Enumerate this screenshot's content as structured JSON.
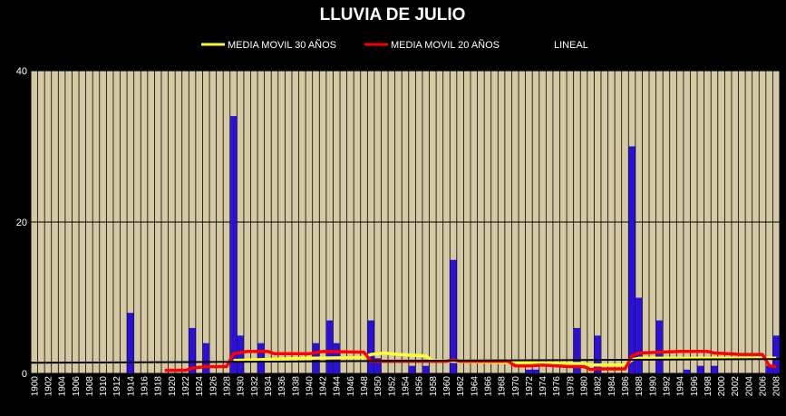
{
  "chart_data": {
    "type": "bar",
    "title": "LLUVIA DE JULIO",
    "xlabel": "",
    "ylabel": "",
    "ylim": [
      0,
      40
    ],
    "y_ticks": [
      "0",
      "20",
      "40"
    ],
    "x_start": 1900,
    "x_end": 2008,
    "x_tick_step": 2,
    "grid": {
      "horizontal": true,
      "vertical": true
    },
    "legend_position": "top",
    "colors": {
      "plot_background": "#d4c9a3",
      "bars": "#2a10d8",
      "ma30": "#ffff33",
      "ma20": "#ff0000",
      "trend": "#000000",
      "grid": "#000000"
    },
    "legend": [
      {
        "key": "ma30",
        "label": "MEDIA MOVIL 30 AÑOS"
      },
      {
        "key": "ma20",
        "label": "MEDIA MOVIL 20 AÑOS"
      },
      {
        "key": "trend",
        "label": "LINEAL"
      }
    ],
    "rain": [
      {
        "year": 1914,
        "value": 8
      },
      {
        "year": 1923,
        "value": 6
      },
      {
        "year": 1925,
        "value": 4
      },
      {
        "year": 1929,
        "value": 34
      },
      {
        "year": 1930,
        "value": 5
      },
      {
        "year": 1933,
        "value": 4
      },
      {
        "year": 1941,
        "value": 4
      },
      {
        "year": 1943,
        "value": 7
      },
      {
        "year": 1944,
        "value": 4
      },
      {
        "year": 1949,
        "value": 7
      },
      {
        "year": 1950,
        "value": 2
      },
      {
        "year": 1955,
        "value": 1
      },
      {
        "year": 1957,
        "value": 1
      },
      {
        "year": 1961,
        "value": 15
      },
      {
        "year": 1972,
        "value": 0.5
      },
      {
        "year": 1973,
        "value": 0.5
      },
      {
        "year": 1979,
        "value": 6
      },
      {
        "year": 1982,
        "value": 5
      },
      {
        "year": 1987,
        "value": 30
      },
      {
        "year": 1988,
        "value": 10
      },
      {
        "year": 1991,
        "value": 7
      },
      {
        "year": 1995,
        "value": 0.5
      },
      {
        "year": 1997,
        "value": 1
      },
      {
        "year": 1999,
        "value": 1
      },
      {
        "year": 2007,
        "value": 1
      },
      {
        "year": 2008,
        "value": 5
      }
    ],
    "ma20": [
      [
        1919,
        0.4
      ],
      [
        1922,
        0.4
      ],
      [
        1923,
        0.7
      ],
      [
        1925,
        0.9
      ],
      [
        1928,
        0.9
      ],
      [
        1929,
        2.6
      ],
      [
        1931,
        2.9
      ],
      [
        1934,
        2.9
      ],
      [
        1935,
        2.6
      ],
      [
        1940,
        2.6
      ],
      [
        1942,
        2.9
      ],
      [
        1948,
        2.8
      ],
      [
        1949,
        1.6
      ],
      [
        1960,
        1.6
      ],
      [
        1961,
        1.8
      ],
      [
        1962,
        1.6
      ],
      [
        1969,
        1.6
      ],
      [
        1970,
        1.0
      ],
      [
        1972,
        1.0
      ],
      [
        1974,
        1.1
      ],
      [
        1978,
        0.9
      ],
      [
        1980,
        0.9
      ],
      [
        1981,
        0.5
      ],
      [
        1982,
        0.6
      ],
      [
        1986,
        0.6
      ],
      [
        1987,
        2.3
      ],
      [
        1988,
        2.7
      ],
      [
        1991,
        2.8
      ],
      [
        1994,
        2.9
      ],
      [
        1998,
        2.9
      ],
      [
        1999,
        2.7
      ],
      [
        2003,
        2.5
      ],
      [
        2006,
        2.5
      ],
      [
        2007,
        1.0
      ],
      [
        2008,
        0.9
      ]
    ],
    "ma30": [
      [
        1929,
        1.7
      ],
      [
        1940,
        2.0
      ],
      [
        1948,
        2.1
      ],
      [
        1949,
        2.5
      ],
      [
        1951,
        2.7
      ],
      [
        1953,
        2.5
      ],
      [
        1957,
        2.3
      ],
      [
        1958,
        1.7
      ],
      [
        1961,
        1.6
      ],
      [
        1970,
        1.4
      ],
      [
        1978,
        1.3
      ],
      [
        1980,
        1.3
      ],
      [
        1981,
        1.1
      ],
      [
        1986,
        1.1
      ],
      [
        1987,
        1.8
      ],
      [
        1988,
        2.0
      ],
      [
        1993,
        2.0
      ],
      [
        2008,
        2.0
      ]
    ],
    "trend": [
      [
        1900,
        1.4
      ],
      [
        2008,
        1.9
      ]
    ]
  }
}
